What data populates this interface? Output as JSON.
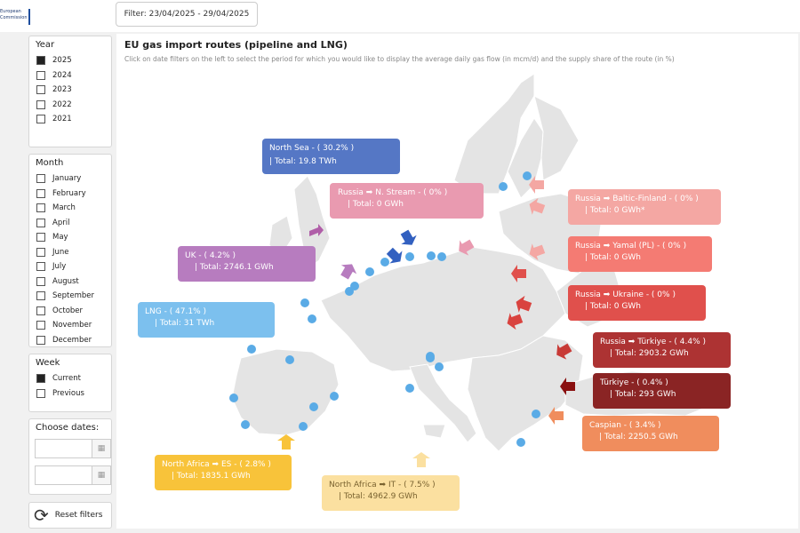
{
  "header": {
    "logo_line1": "European",
    "logo_line2": "Commission",
    "filter_text": "Filter: 23/04/2025 - 29/04/2025"
  },
  "year_panel": {
    "title": "Year",
    "options": [
      {
        "label": "2025",
        "checked": true
      },
      {
        "label": "2024",
        "checked": false
      },
      {
        "label": "2023",
        "checked": false
      },
      {
        "label": "2022",
        "checked": false
      },
      {
        "label": "2021",
        "checked": false
      }
    ]
  },
  "month_panel": {
    "title": "Month",
    "options": [
      "January",
      "February",
      "March",
      "April",
      "May",
      "June",
      "July",
      "August",
      "September",
      "October",
      "November",
      "December"
    ]
  },
  "week_panel": {
    "title": "Week",
    "options": [
      {
        "label": "Current",
        "checked": true
      },
      {
        "label": "Previous",
        "checked": false
      }
    ]
  },
  "dates_panel": {
    "title": "Choose dates:",
    "calendar_icon": "calendar-icon"
  },
  "reset": {
    "label": "Reset filters",
    "icon": "refresh-icon"
  },
  "map": {
    "title": "EU gas import routes (pipeline and LNG)",
    "subtitle": "Click on date filters on the left to select the period for which you would like to display the average daily gas flow (in mcm/d) and the supply share of the route (in %)"
  },
  "routes": {
    "north_sea": {
      "title": "North Sea - ( 30.2% )",
      "value": "Total: 19.8 TWh",
      "color": "#5577c5"
    },
    "russia_nstream": {
      "title": "Russia ➡ N. Stream - ( 0% )",
      "value": "Total: 0 GWh",
      "color": "#e99ab0"
    },
    "russia_baltic": {
      "title": "Russia ➡ Baltic-Finland - ( 0% )",
      "value": "Total: 0 GWh*",
      "color": "#f4a7a3"
    },
    "russia_yamal": {
      "title": "Russia ➡ Yamal (PL) - ( 0% )",
      "value": "Total: 0 GWh",
      "color": "#f47b73"
    },
    "uk": {
      "title": "UK - ( 4.2% )",
      "value": "Total: 2746.1 GWh",
      "color": "#b77cbf"
    },
    "russia_ukraine": {
      "title": "Russia ➡ Ukraine - ( 0% )",
      "value": "Total: 0 GWh",
      "color": "#e0504c"
    },
    "lng": {
      "title": "LNG - ( 47.1% )",
      "value": "Total: 31 TWh",
      "color": "#7cc0ee"
    },
    "russia_turkiye": {
      "title": "Russia ➡ Türkiye - ( 4.4% )",
      "value": "Total: 2903.2 GWh",
      "color": "#ad3333"
    },
    "turkiye": {
      "title": "Türkiye - ( 0.4% )",
      "value": "Total: 293 GWh",
      "color": "#8a2424"
    },
    "caspian": {
      "title": "Caspian - ( 3.4% )",
      "value": "Total: 2250.5 GWh",
      "color": "#f08d5d"
    },
    "north_africa_es": {
      "title": "North Africa ➡ ES - ( 2.8% )",
      "value": "Total: 1835.1 GWh",
      "color": "#f8c33a"
    },
    "north_africa_it": {
      "title": "North Africa ➡ IT - ( 7.5% )",
      "value": "Total: 4962.9 GWh",
      "color": "#fbe0a0"
    }
  }
}
